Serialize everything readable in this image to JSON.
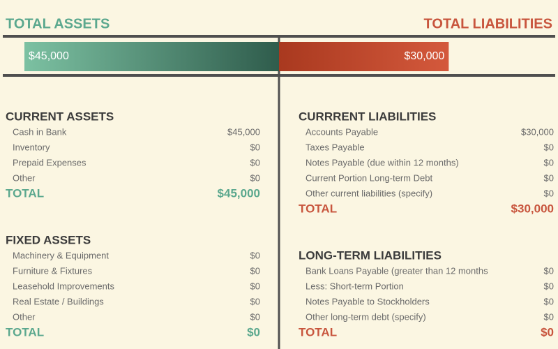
{
  "header": {
    "assets_title": "TOTAL ASSETS",
    "liabilities_title": "TOTAL LIABILITIES"
  },
  "bar": {
    "values": [
      45000,
      30000
    ],
    "value_labels": [
      "$45,000",
      "$30,000"
    ],
    "colors": [
      "#5ba88e",
      "#c8553d"
    ]
  },
  "left_sections": [
    {
      "title": "CURRENT ASSETS",
      "items": [
        {
          "label": "Cash in Bank",
          "value": "$45,000"
        },
        {
          "label": "Inventory",
          "value": "$0"
        },
        {
          "label": "Prepaid Expenses",
          "value": "$0"
        },
        {
          "label": "Other",
          "value": "$0"
        }
      ],
      "total_label": "TOTAL",
      "total": "$45,000"
    },
    {
      "title": "FIXED ASSETS",
      "items": [
        {
          "label": "Machinery & Equipment",
          "value": "$0"
        },
        {
          "label": "Furniture & Fixtures",
          "value": "$0"
        },
        {
          "label": "Leasehold Improvements",
          "value": "$0"
        },
        {
          "label": "Real Estate / Buildings",
          "value": "$0"
        },
        {
          "label": "Other",
          "value": "$0"
        }
      ],
      "total_label": "TOTAL",
      "total": "$0"
    }
  ],
  "right_sections": [
    {
      "title": "CURRRENT LIABILITIES",
      "items": [
        {
          "label": "Accounts Payable",
          "value": "$30,000"
        },
        {
          "label": "Taxes Payable",
          "value": "$0"
        },
        {
          "label": "Notes Payable (due within 12 months)",
          "value": "$0"
        },
        {
          "label": "Current Portion Long-term Debt",
          "value": "$0"
        },
        {
          "label": "Other current liabilities (specify)",
          "value": "$0"
        }
      ],
      "total_label": "TOTAL",
      "total": "$30,000"
    },
    {
      "title": "LONG-TERM LIABILITIES",
      "items": [
        {
          "label": "Bank Loans Payable (greater than 12 months",
          "value": "$0"
        },
        {
          "label": "Less: Short-term Portion",
          "value": "$0"
        },
        {
          "label": "Notes Payable to Stockholders",
          "value": "$0"
        },
        {
          "label": "Other long-term debt (specify)",
          "value": "$0"
        }
      ],
      "total_label": "TOTAL",
      "total": "$0"
    }
  ]
}
